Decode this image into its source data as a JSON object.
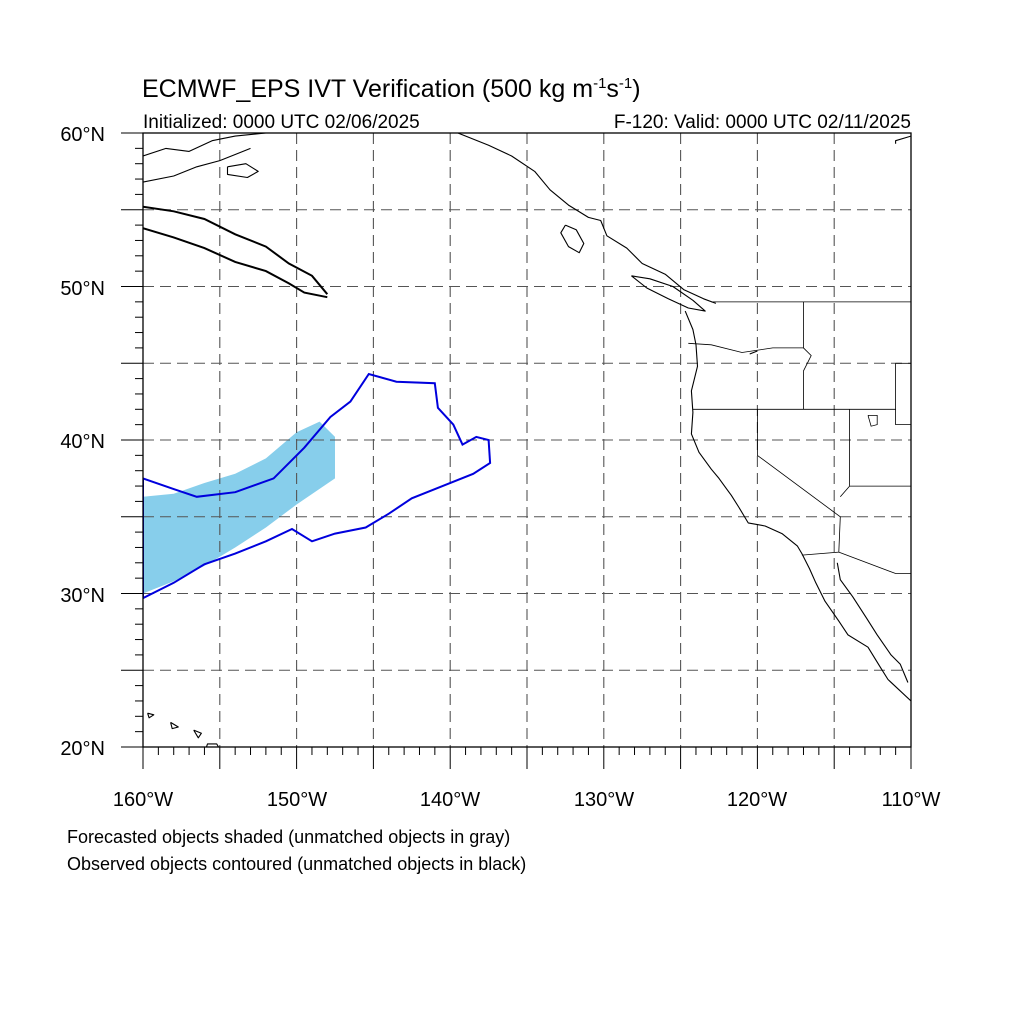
{
  "title": {
    "prefix": "ECMWF_EPS IVT Verification (500 kg m",
    "sup1": "-1",
    "mid": "s",
    "sup2": "-1",
    "suffix": ")"
  },
  "subtitle_left": "Initialized: 0000 UTC 02/06/2025",
  "subtitle_right": "F-120: Valid: 0000 UTC 02/11/2025",
  "lat_labels": [
    {
      "value": 60,
      "label": "60°N"
    },
    {
      "value": 50,
      "label": "50°N"
    },
    {
      "value": 40,
      "label": "40°N"
    },
    {
      "value": 30,
      "label": "30°N"
    },
    {
      "value": 20,
      "label": "20°N"
    }
  ],
  "lon_labels": [
    {
      "value": -160,
      "label": "160°W"
    },
    {
      "value": -150,
      "label": "150°W"
    },
    {
      "value": -140,
      "label": "140°W"
    },
    {
      "value": -130,
      "label": "130°W"
    },
    {
      "value": -120,
      "label": "120°W"
    },
    {
      "value": -110,
      "label": "110°W"
    }
  ],
  "extent": {
    "lon": [
      -160,
      -110
    ],
    "lat": [
      20,
      60
    ]
  },
  "grid": {
    "lon_step": 5,
    "lat_step": 5,
    "style": "dashed",
    "color": "#555555"
  },
  "footnotes": [
    "Forecasted objects shaded (unmatched objects in gray)",
    "Observed objects contoured (unmatched objects in black)"
  ],
  "colors": {
    "forecast_matched_fill": "#87ceeb",
    "observed_matched_contour": "#0000dd",
    "observed_unmatched_contour": "#000000",
    "coastline": "#000000"
  },
  "objects": {
    "forecast_matched": [
      [
        [
          -160,
          36.3
        ],
        [
          -158,
          36.5
        ],
        [
          -156,
          37.2
        ],
        [
          -154,
          37.8
        ],
        [
          -152,
          38.8
        ],
        [
          -150,
          40.5
        ],
        [
          -148.5,
          41.2
        ],
        [
          -147.5,
          40.2
        ],
        [
          -147.5,
          37.5
        ],
        [
          -150,
          35.8
        ],
        [
          -152,
          34.3
        ],
        [
          -154,
          33
        ],
        [
          -156,
          31.8
        ],
        [
          -158,
          30.8
        ],
        [
          -160,
          30
        ]
      ]
    ],
    "observed_matched": [
      [
        [
          -160,
          37.5
        ],
        [
          -158,
          36.8
        ],
        [
          -156.5,
          36.3
        ],
        [
          -154,
          36.6
        ],
        [
          -151.5,
          37.5
        ],
        [
          -149.5,
          39.5
        ],
        [
          -147.8,
          41.5
        ],
        [
          -146.5,
          42.5
        ],
        [
          -145.3,
          44.3
        ],
        [
          -143.5,
          43.8
        ],
        [
          -141,
          43.7
        ],
        [
          -140.8,
          42.1
        ],
        [
          -139.8,
          41
        ],
        [
          -139.2,
          39.7
        ],
        [
          -138.3,
          40.2
        ],
        [
          -137.5,
          40
        ],
        [
          -137.4,
          38.5
        ],
        [
          -138.5,
          37.8
        ],
        [
          -140.5,
          37
        ],
        [
          -142.5,
          36.2
        ],
        [
          -144,
          35.2
        ],
        [
          -145.5,
          34.3
        ],
        [
          -147.5,
          33.9
        ],
        [
          -149,
          33.4
        ],
        [
          -150.3,
          34.2
        ],
        [
          -152,
          33.4
        ],
        [
          -154,
          32.6
        ],
        [
          -156,
          31.9
        ],
        [
          -158,
          30.7
        ],
        [
          -160,
          29.7
        ]
      ]
    ],
    "observed_unmatched": [
      [
        [
          -160,
          55.2
        ],
        [
          -158,
          54.9
        ],
        [
          -156,
          54.4
        ],
        [
          -154,
          53.4
        ],
        [
          -152,
          52.6
        ],
        [
          -150.5,
          51.5
        ],
        [
          -149,
          50.7
        ],
        [
          -148,
          49.5
        ]
      ],
      [
        [
          -160,
          53.8
        ],
        [
          -158,
          53.2
        ],
        [
          -156,
          52.5
        ],
        [
          -154,
          51.6
        ],
        [
          -152,
          51
        ],
        [
          -150.5,
          50.2
        ],
        [
          -149.5,
          49.6
        ],
        [
          -148,
          49.3
        ]
      ]
    ]
  },
  "coastlines": [
    [
      [
        -160,
        58.5
      ],
      [
        -158.5,
        59
      ],
      [
        -157,
        58.8
      ],
      [
        -155.5,
        59.5
      ],
      [
        -154,
        59.8
      ],
      [
        -152,
        60
      ]
    ],
    [
      [
        -160,
        56.8
      ],
      [
        -158,
        57.2
      ],
      [
        -156.5,
        57.8
      ],
      [
        -155,
        58.2
      ],
      [
        -154,
        58.6
      ],
      [
        -153,
        59
      ]
    ],
    [
      [
        -154.5,
        57.8
      ],
      [
        -153.3,
        58
      ],
      [
        -152.5,
        57.5
      ],
      [
        -153.2,
        57.1
      ],
      [
        -154.5,
        57.3
      ],
      [
        -154.5,
        57.8
      ]
    ],
    [
      [
        -139.5,
        60
      ],
      [
        -137.5,
        59.2
      ],
      [
        -136,
        58.5
      ],
      [
        -134.5,
        57.5
      ],
      [
        -133.5,
        56.3
      ],
      [
        -132.3,
        55.3
      ],
      [
        -131,
        54.5
      ],
      [
        -130.2,
        54.3
      ],
      [
        -129.8,
        53.3
      ],
      [
        -128.5,
        52.5
      ],
      [
        -127.5,
        51.5
      ],
      [
        -126,
        50.8
      ],
      [
        -124.8,
        49.8
      ],
      [
        -123.5,
        49.2
      ],
      [
        -122.7,
        48.9
      ]
    ],
    [
      [
        -132.5,
        54
      ],
      [
        -131.8,
        53.7
      ],
      [
        -131.3,
        52.8
      ],
      [
        -131.6,
        52.2
      ],
      [
        -132.3,
        52.6
      ],
      [
        -132.8,
        53.5
      ],
      [
        -132.5,
        54
      ]
    ],
    [
      [
        -128.2,
        50.7
      ],
      [
        -127,
        50.5
      ],
      [
        -125.5,
        50
      ],
      [
        -124.2,
        49.1
      ],
      [
        -123.4,
        48.4
      ],
      [
        -124.5,
        48.6
      ],
      [
        -125.8,
        49.2
      ],
      [
        -127.2,
        49.9
      ],
      [
        -128.2,
        50.7
      ]
    ],
    [
      [
        -124.7,
        48.4
      ],
      [
        -124.2,
        47.2
      ],
      [
        -124,
        46.2
      ],
      [
        -123.9,
        44.8
      ],
      [
        -124.3,
        43.2
      ],
      [
        -124.2,
        41.8
      ],
      [
        -124.3,
        40.4
      ],
      [
        -123.8,
        39.2
      ],
      [
        -123,
        38.1
      ],
      [
        -122.5,
        37.5
      ],
      [
        -122,
        36.8
      ],
      [
        -121.7,
        36.4
      ],
      [
        -121.2,
        35.6
      ],
      [
        -120.6,
        34.6
      ],
      [
        -119.5,
        34.4
      ],
      [
        -118.4,
        33.9
      ],
      [
        -117.4,
        33.1
      ],
      [
        -117.1,
        32.6
      ],
      [
        -116.6,
        31.6
      ],
      [
        -116.2,
        30.7
      ],
      [
        -115.6,
        29.5
      ],
      [
        -114.7,
        28.2
      ],
      [
        -114.1,
        27.3
      ],
      [
        -112.8,
        26.5
      ],
      [
        -112,
        25.2
      ],
      [
        -111.5,
        24.4
      ],
      [
        -110,
        23
      ]
    ],
    [
      [
        -114.8,
        32
      ],
      [
        -114.6,
        30.9
      ],
      [
        -113.8,
        29.8
      ],
      [
        -112.9,
        28.4
      ],
      [
        -112.2,
        27.3
      ],
      [
        -111.3,
        26
      ],
      [
        -110.7,
        25.4
      ],
      [
        -110.2,
        24.2
      ]
    ],
    [
      [
        -154.8,
        19.5
      ],
      [
        -155.6,
        19
      ],
      [
        -156,
        19.6
      ],
      [
        -155.8,
        20.2
      ],
      [
        -155.2,
        20.2
      ],
      [
        -154.8,
        19.5
      ]
    ],
    [
      [
        -156.7,
        21.1
      ],
      [
        -156.2,
        20.9
      ],
      [
        -156.4,
        20.6
      ],
      [
        -156.7,
        21.1
      ]
    ],
    [
      [
        -158.2,
        21.6
      ],
      [
        -157.7,
        21.3
      ],
      [
        -158.1,
        21.2
      ],
      [
        -158.2,
        21.6
      ]
    ],
    [
      [
        -159.7,
        22.2
      ],
      [
        -159.3,
        22.1
      ],
      [
        -159.6,
        21.9
      ],
      [
        -159.7,
        22.2
      ]
    ],
    [
      [
        -110,
        59.8
      ],
      [
        -111,
        59.5
      ],
      [
        -111,
        59.3
      ]
    ],
    [
      [
        -120,
        45.8
      ],
      [
        -120.5,
        45.6
      ]
    ]
  ],
  "borders": [
    [
      [
        -123,
        49
      ],
      [
        -110,
        49
      ]
    ],
    [
      [
        -124.5,
        46.3
      ],
      [
        -123,
        46.2
      ],
      [
        -121,
        45.7
      ],
      [
        -119,
        46
      ],
      [
        -117,
        46
      ]
    ],
    [
      [
        -124.2,
        42
      ],
      [
        -111,
        42
      ]
    ],
    [
      [
        -117,
        49
      ],
      [
        -117,
        46
      ],
      [
        -116.5,
        45.5
      ],
      [
        -117,
        44.5
      ],
      [
        -117,
        42
      ]
    ],
    [
      [
        -120,
        42
      ],
      [
        -120,
        39
      ],
      [
        -114.6,
        35
      ],
      [
        -114.7,
        32.7
      ],
      [
        -117.1,
        32.5
      ]
    ],
    [
      [
        -114.7,
        32.7
      ],
      [
        -111,
        31.3
      ],
      [
        -110,
        31.3
      ]
    ],
    [
      [
        -114,
        42
      ],
      [
        -114,
        37
      ],
      [
        -114.6,
        36.3
      ]
    ],
    [
      [
        -114,
        37
      ],
      [
        -110,
        37
      ]
    ],
    [
      [
        -111,
        45
      ],
      [
        -110,
        45
      ]
    ],
    [
      [
        -111,
        45
      ],
      [
        -111,
        41
      ],
      [
        -110,
        41
      ]
    ]
  ],
  "lakes": [
    [
      [
        -112.8,
        41.6
      ],
      [
        -112.2,
        41.6
      ],
      [
        -112.2,
        41
      ],
      [
        -112.6,
        40.9
      ],
      [
        -112.8,
        41.6
      ]
    ]
  ]
}
